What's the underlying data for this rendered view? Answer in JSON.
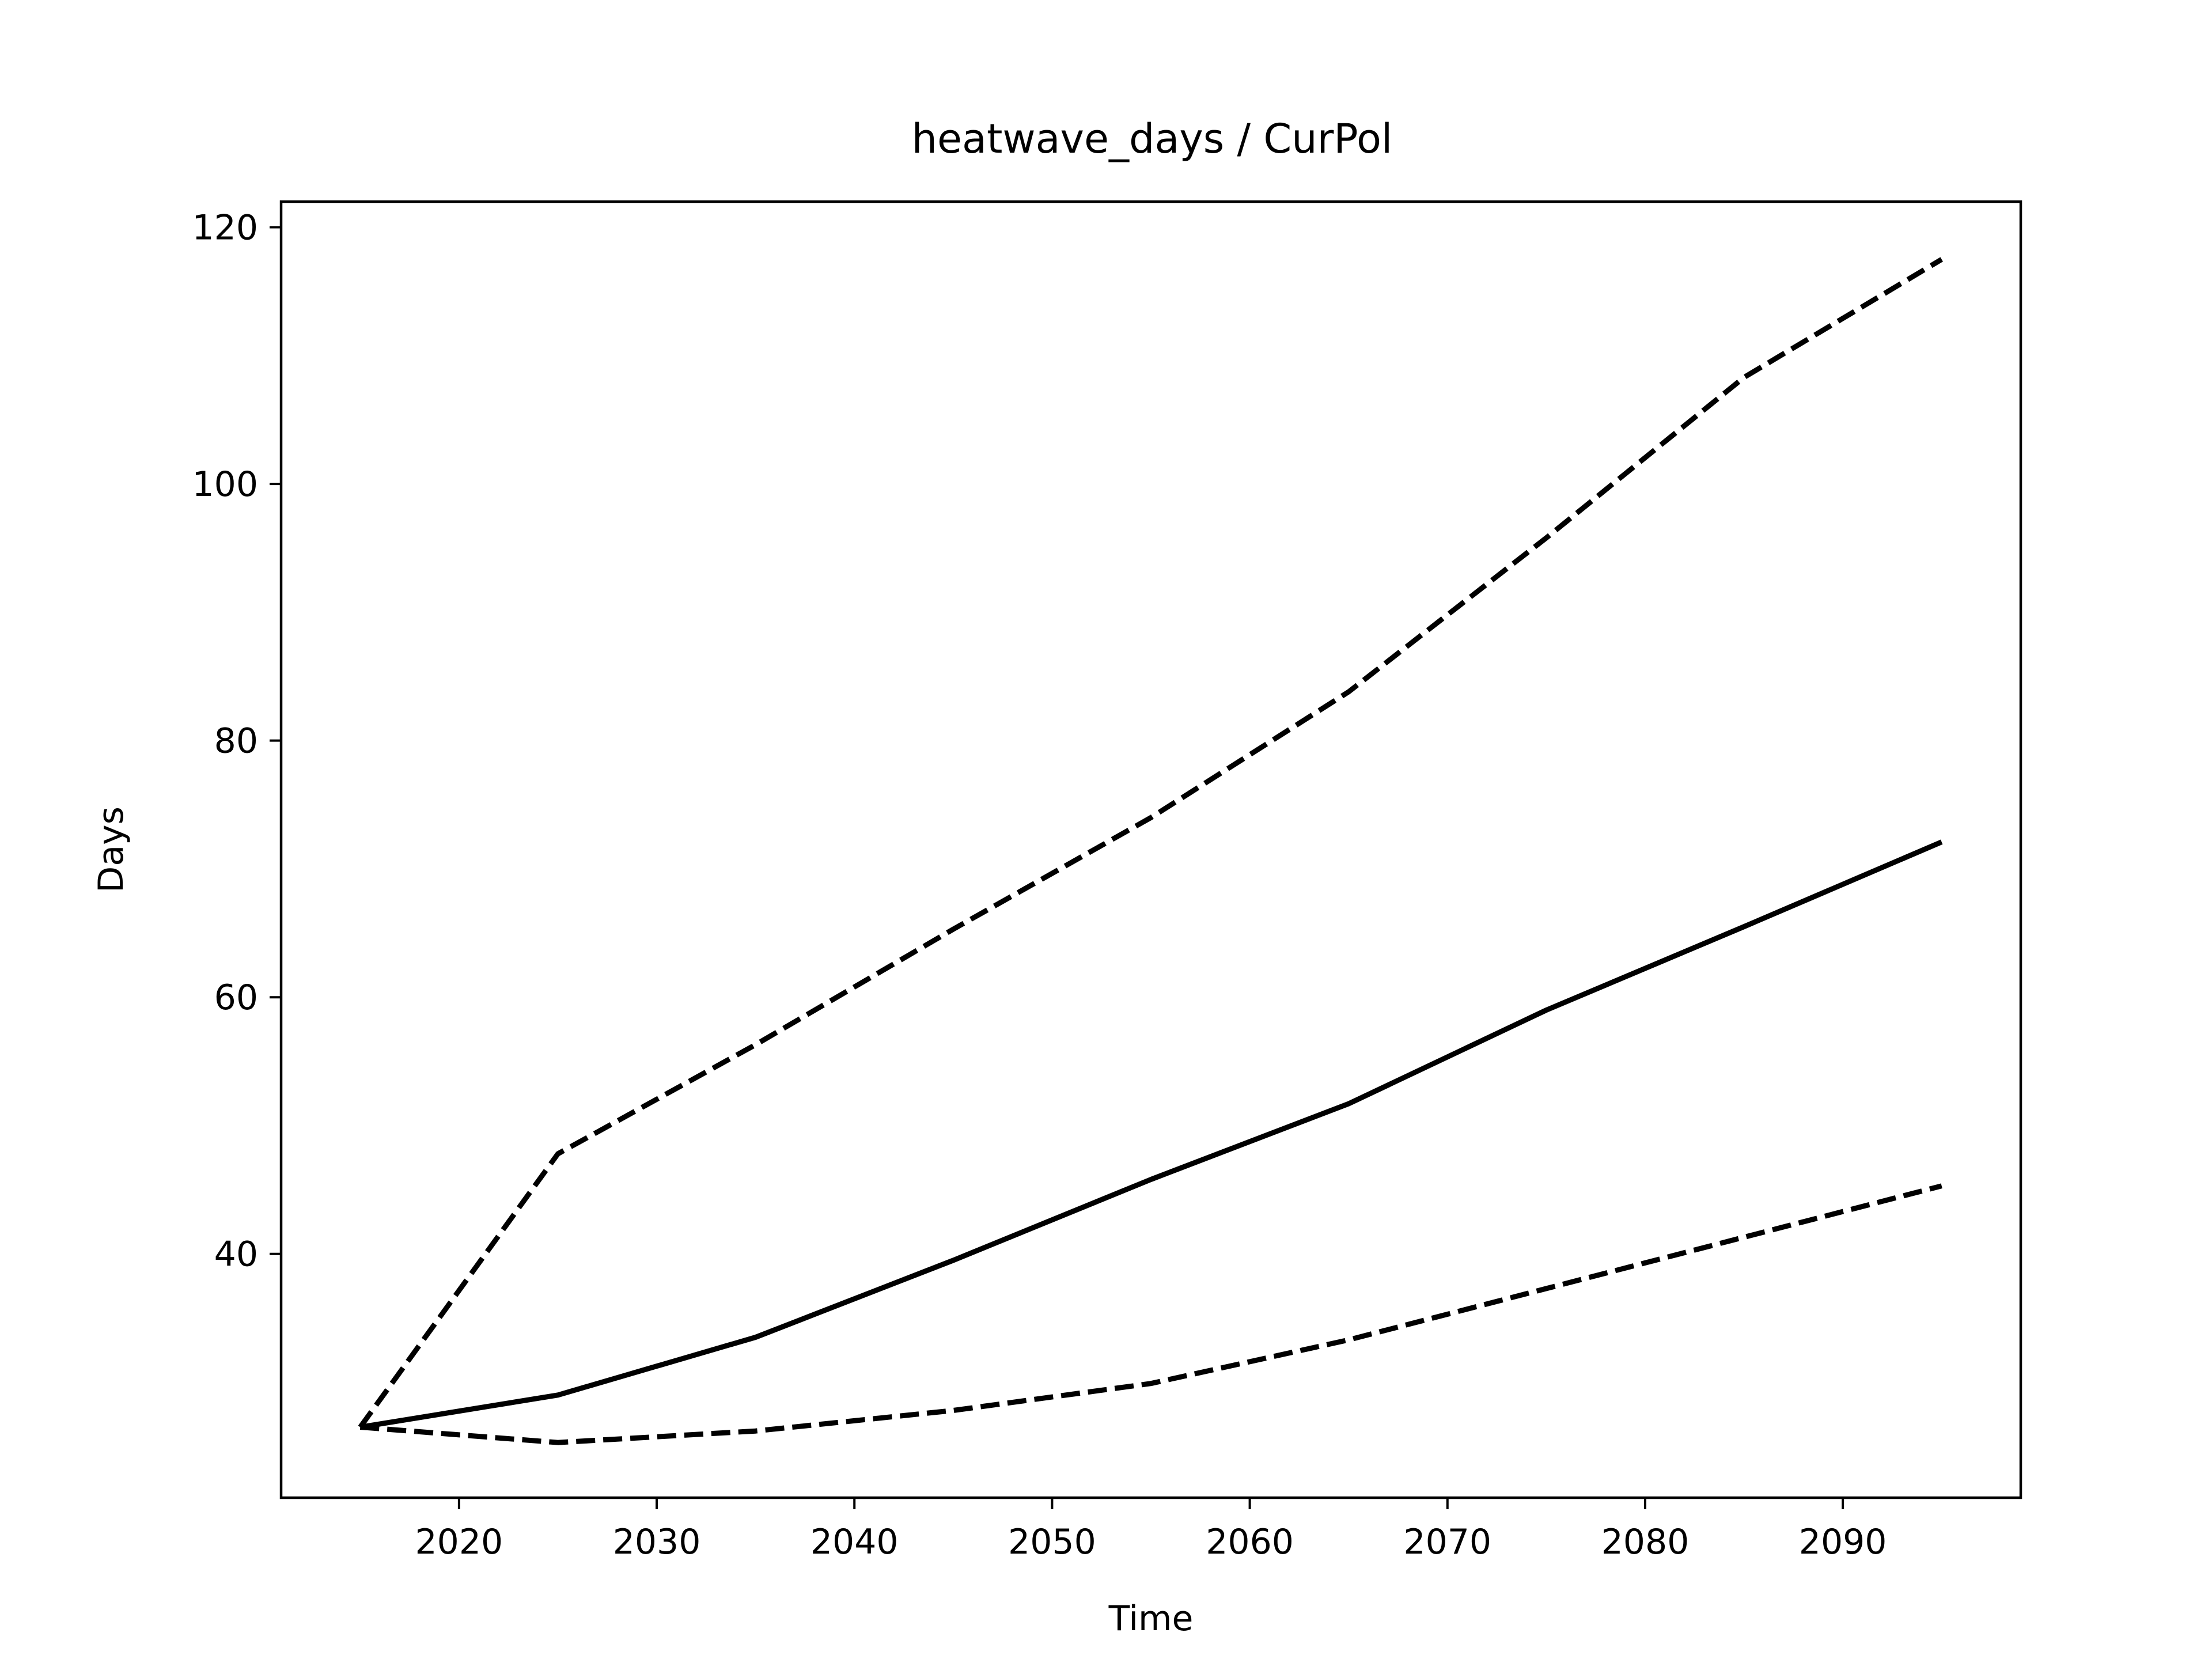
{
  "chart_data": {
    "type": "line",
    "title": "heatwave_days / CurPol",
    "xlabel": "Time",
    "ylabel": "Days",
    "xlim": [
      2011,
      2099
    ],
    "ylim": [
      21,
      122
    ],
    "x_ticks": [
      2020,
      2030,
      2040,
      2050,
      2060,
      2070,
      2080,
      2090
    ],
    "y_ticks": [
      40,
      60,
      80,
      100,
      120
    ],
    "grid": false,
    "legend": "none",
    "x": [
      2015,
      2025,
      2035,
      2045,
      2055,
      2065,
      2075,
      2085,
      2095
    ],
    "series": [
      {
        "style": "dashed",
        "color": "#000000",
        "values": [
          26.5,
          47.8,
          56.3,
          65.3,
          74.0,
          83.8,
          95.8,
          108.3,
          117.5
        ]
      },
      {
        "style": "solid",
        "color": "#000000",
        "values": [
          26.5,
          29.0,
          33.5,
          39.5,
          45.8,
          51.7,
          59.0,
          65.5,
          72.1
        ]
      },
      {
        "style": "dashed",
        "color": "#000000",
        "values": [
          26.5,
          25.3,
          26.2,
          27.8,
          29.9,
          33.3,
          37.3,
          41.3,
          45.3
        ]
      }
    ]
  }
}
